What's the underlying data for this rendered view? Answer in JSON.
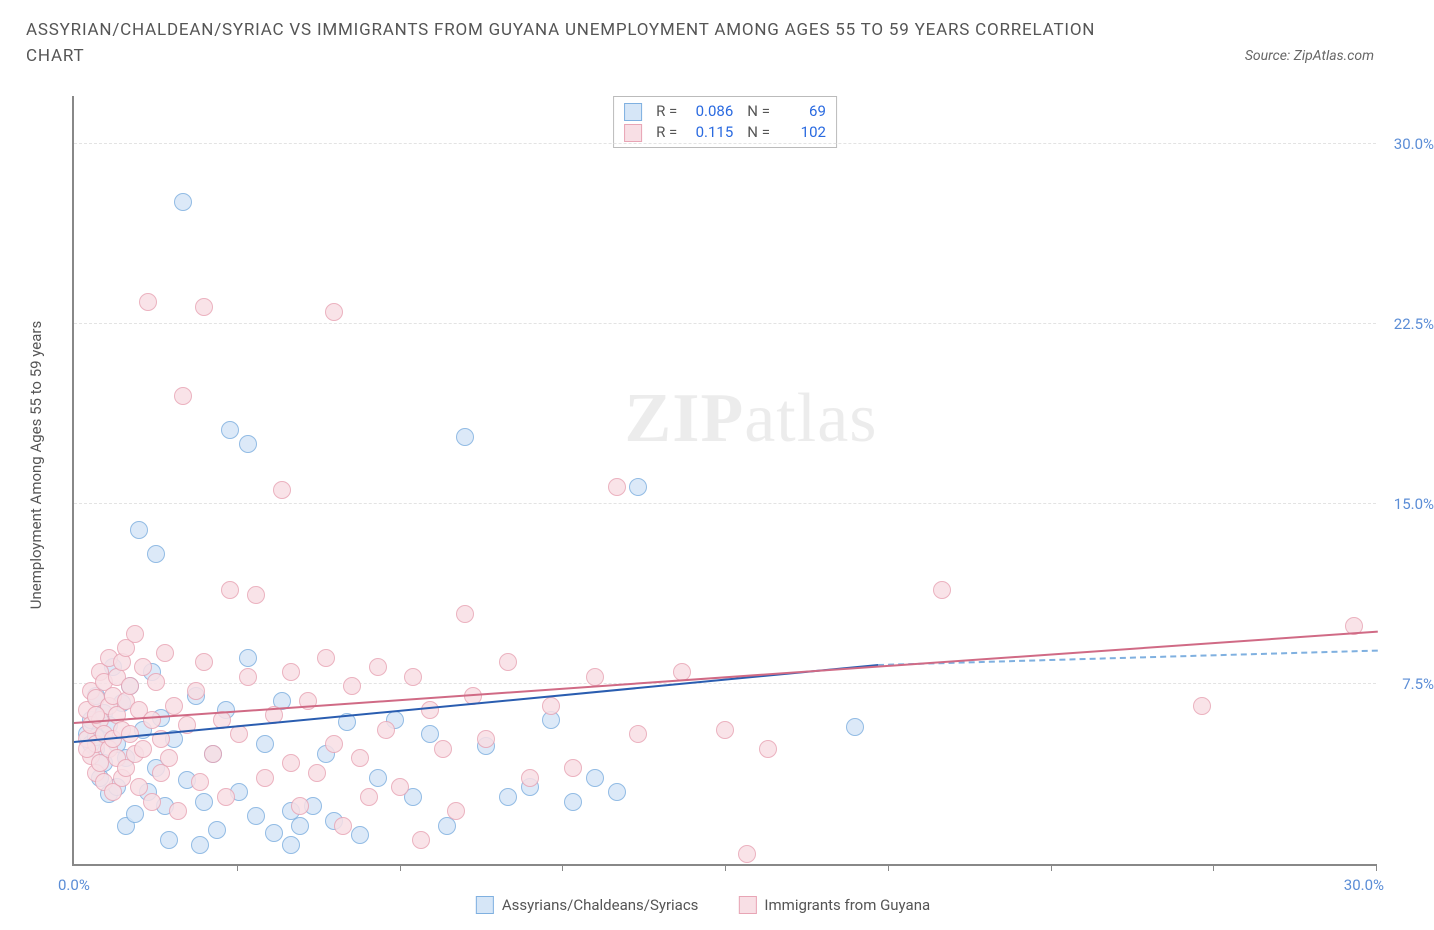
{
  "title": "ASSYRIAN/CHALDEAN/SYRIAC VS IMMIGRANTS FROM GUYANA UNEMPLOYMENT AMONG AGES 55 TO 59 YEARS CORRELATION CHART",
  "source": "Source: ZipAtlas.com",
  "y_axis_label": "Unemployment Among Ages 55 to 59 years",
  "watermark_a": "ZIP",
  "watermark_b": "atlas",
  "chart": {
    "type": "scatter",
    "xlim": [
      0,
      30
    ],
    "ylim": [
      0,
      32
    ],
    "x_origin_label": "0.0%",
    "x_max_label": "30.0%",
    "y_ticks": [
      7.5,
      15.0,
      22.5,
      30.0
    ],
    "y_tick_labels": [
      "7.5%",
      "15.0%",
      "22.5%",
      "30.0%"
    ],
    "x_ticks": [
      3.75,
      7.5,
      11.25,
      15.0,
      18.75,
      22.5,
      26.25,
      30.0
    ],
    "grid_color": "#e3e3e3",
    "background_color": "#ffffff",
    "point_radius": 9,
    "point_stroke_width": 1.5,
    "series": [
      {
        "name": "Assyrians/Chaldeans/Syriacs",
        "fill": "#d6e6f7",
        "stroke": "#7fb0e0",
        "stats": {
          "R": "0.086",
          "N": "69"
        },
        "trend": {
          "x1": 0,
          "y1": 5.2,
          "x2": 18.5,
          "y2": 8.4,
          "color": "#2a5db0",
          "dash_x2": 30,
          "dash_y2": 9.0
        },
        "points": [
          [
            0.3,
            5.4
          ],
          [
            0.4,
            6.0
          ],
          [
            0.5,
            4.8
          ],
          [
            0.5,
            7.0
          ],
          [
            0.6,
            5.5
          ],
          [
            0.6,
            3.6
          ],
          [
            0.7,
            4.2
          ],
          [
            0.7,
            6.3
          ],
          [
            0.8,
            5.8
          ],
          [
            0.8,
            2.9
          ],
          [
            0.9,
            8.2
          ],
          [
            1.0,
            3.2
          ],
          [
            1.0,
            5.0
          ],
          [
            1.1,
            6.7
          ],
          [
            1.2,
            1.6
          ],
          [
            1.2,
            4.4
          ],
          [
            1.3,
            7.4
          ],
          [
            1.4,
            2.1
          ],
          [
            1.5,
            13.9
          ],
          [
            1.6,
            5.6
          ],
          [
            1.7,
            3.0
          ],
          [
            1.8,
            8.0
          ],
          [
            1.9,
            4.0
          ],
          [
            1.9,
            12.9
          ],
          [
            2.0,
            6.1
          ],
          [
            2.1,
            2.4
          ],
          [
            2.2,
            1.0
          ],
          [
            2.3,
            5.2
          ],
          [
            2.5,
            27.6
          ],
          [
            2.6,
            3.5
          ],
          [
            2.8,
            7.0
          ],
          [
            2.9,
            0.8
          ],
          [
            3.0,
            2.6
          ],
          [
            3.2,
            4.6
          ],
          [
            3.3,
            1.4
          ],
          [
            3.5,
            6.4
          ],
          [
            3.6,
            18.1
          ],
          [
            3.8,
            3.0
          ],
          [
            4.0,
            8.6
          ],
          [
            4.0,
            17.5
          ],
          [
            4.2,
            2.0
          ],
          [
            4.4,
            5.0
          ],
          [
            4.6,
            1.3
          ],
          [
            4.8,
            6.8
          ],
          [
            5.0,
            0.8
          ],
          [
            5.0,
            2.2
          ],
          [
            5.2,
            1.6
          ],
          [
            5.5,
            2.4
          ],
          [
            5.8,
            4.6
          ],
          [
            6.0,
            1.8
          ],
          [
            6.3,
            5.9
          ],
          [
            6.6,
            1.2
          ],
          [
            7.0,
            3.6
          ],
          [
            7.4,
            6.0
          ],
          [
            7.8,
            2.8
          ],
          [
            8.2,
            5.4
          ],
          [
            8.6,
            1.6
          ],
          [
            9.0,
            17.8
          ],
          [
            9.5,
            4.9
          ],
          [
            10.0,
            2.8
          ],
          [
            10.5,
            3.2
          ],
          [
            11.0,
            6.0
          ],
          [
            11.5,
            2.6
          ],
          [
            12.0,
            3.6
          ],
          [
            12.5,
            3.0
          ],
          [
            13.0,
            15.7
          ],
          [
            18.0,
            5.7
          ],
          [
            0.4,
            5.0
          ],
          [
            0.5,
            5.3
          ]
        ]
      },
      {
        "name": "Immigrants from Guyana",
        "fill": "#f8dfe5",
        "stroke": "#e8a5b5",
        "stats": {
          "R": "0.115",
          "N": "102"
        },
        "trend": {
          "x1": 0,
          "y1": 6.0,
          "x2": 30,
          "y2": 9.8,
          "color": "#d06a85"
        },
        "points": [
          [
            0.3,
            5.2
          ],
          [
            0.3,
            6.4
          ],
          [
            0.4,
            4.5
          ],
          [
            0.4,
            7.2
          ],
          [
            0.4,
            5.8
          ],
          [
            0.5,
            3.8
          ],
          [
            0.5,
            6.9
          ],
          [
            0.5,
            5.0
          ],
          [
            0.6,
            8.0
          ],
          [
            0.6,
            4.2
          ],
          [
            0.6,
            6.0
          ],
          [
            0.7,
            7.6
          ],
          [
            0.7,
            5.4
          ],
          [
            0.7,
            3.4
          ],
          [
            0.8,
            6.6
          ],
          [
            0.8,
            4.8
          ],
          [
            0.8,
            8.6
          ],
          [
            0.9,
            5.2
          ],
          [
            0.9,
            7.0
          ],
          [
            0.9,
            3.0
          ],
          [
            1.0,
            6.2
          ],
          [
            1.0,
            4.4
          ],
          [
            1.0,
            7.8
          ],
          [
            1.1,
            5.6
          ],
          [
            1.1,
            8.4
          ],
          [
            1.1,
            3.6
          ],
          [
            1.2,
            6.8
          ],
          [
            1.2,
            4.0
          ],
          [
            1.2,
            9.0
          ],
          [
            1.3,
            5.4
          ],
          [
            1.3,
            7.4
          ],
          [
            1.4,
            9.6
          ],
          [
            1.4,
            4.6
          ],
          [
            1.5,
            6.4
          ],
          [
            1.5,
            3.2
          ],
          [
            1.6,
            8.2
          ],
          [
            1.6,
            4.8
          ],
          [
            1.7,
            23.4
          ],
          [
            1.8,
            6.0
          ],
          [
            1.8,
            2.6
          ],
          [
            1.9,
            7.6
          ],
          [
            2.0,
            5.2
          ],
          [
            2.0,
            3.8
          ],
          [
            2.1,
            8.8
          ],
          [
            2.2,
            4.4
          ],
          [
            2.3,
            6.6
          ],
          [
            2.4,
            2.2
          ],
          [
            2.5,
            19.5
          ],
          [
            2.6,
            5.8
          ],
          [
            2.8,
            7.2
          ],
          [
            2.9,
            3.4
          ],
          [
            3.0,
            8.4
          ],
          [
            3.0,
            23.2
          ],
          [
            3.2,
            4.6
          ],
          [
            3.4,
            6.0
          ],
          [
            3.5,
            2.8
          ],
          [
            3.6,
            11.4
          ],
          [
            3.8,
            5.4
          ],
          [
            4.0,
            7.8
          ],
          [
            4.2,
            11.2
          ],
          [
            4.4,
            3.6
          ],
          [
            4.6,
            6.2
          ],
          [
            4.8,
            15.6
          ],
          [
            5.0,
            8.0
          ],
          [
            5.0,
            4.2
          ],
          [
            5.2,
            2.4
          ],
          [
            5.4,
            6.8
          ],
          [
            5.6,
            3.8
          ],
          [
            5.8,
            8.6
          ],
          [
            6.0,
            23.0
          ],
          [
            6.0,
            5.0
          ],
          [
            6.2,
            1.6
          ],
          [
            6.4,
            7.4
          ],
          [
            6.6,
            4.4
          ],
          [
            6.8,
            2.8
          ],
          [
            7.0,
            8.2
          ],
          [
            7.2,
            5.6
          ],
          [
            7.5,
            3.2
          ],
          [
            7.8,
            7.8
          ],
          [
            8.0,
            1.0
          ],
          [
            8.2,
            6.4
          ],
          [
            8.5,
            4.8
          ],
          [
            8.8,
            2.2
          ],
          [
            9.0,
            10.4
          ],
          [
            9.2,
            7.0
          ],
          [
            9.5,
            5.2
          ],
          [
            10.0,
            8.4
          ],
          [
            10.5,
            3.6
          ],
          [
            11.0,
            6.6
          ],
          [
            11.5,
            4.0
          ],
          [
            12.0,
            7.8
          ],
          [
            12.5,
            15.7
          ],
          [
            13.0,
            5.4
          ],
          [
            14.0,
            8.0
          ],
          [
            15.0,
            5.6
          ],
          [
            15.5,
            0.4
          ],
          [
            16.0,
            4.8
          ],
          [
            20.0,
            11.4
          ],
          [
            26.0,
            6.6
          ],
          [
            29.5,
            9.9
          ],
          [
            0.3,
            4.8
          ],
          [
            0.5,
            6.2
          ]
        ]
      }
    ]
  },
  "legend": {
    "series1": "Assyrians/Chaldeans/Syriacs",
    "series2": "Immigrants from Guyana"
  }
}
